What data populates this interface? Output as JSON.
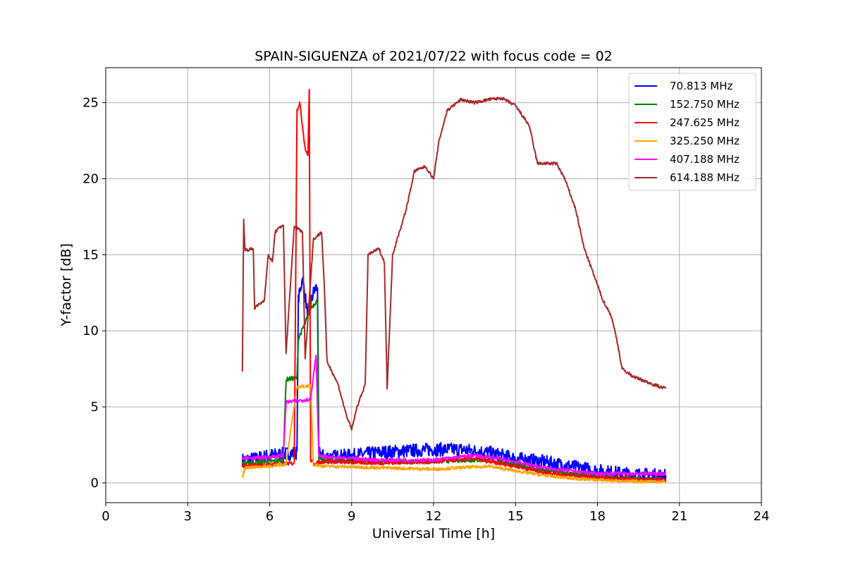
{
  "chart_data": {
    "type": "line",
    "title": "SPAIN-SIGUENZA of 2021/07/22 with focus code = 02",
    "xlabel": "Universal Time [h]",
    "ylabel": "Y-factor [dB]",
    "xlim": [
      0,
      24
    ],
    "ylim": [
      -1.3,
      27.3
    ],
    "xticks": [
      0,
      3,
      6,
      9,
      12,
      15,
      18,
      21,
      24
    ],
    "yticks": [
      0,
      5,
      10,
      15,
      20,
      25
    ],
    "grid": true,
    "legend_position": "top-right",
    "series": [
      {
        "name": " 70.813 MHz",
        "color": "#0000ff",
        "noise": 0.45,
        "points": [
          [
            5.0,
            1.5
          ],
          [
            5.5,
            1.6
          ],
          [
            6.0,
            1.8
          ],
          [
            6.5,
            1.9
          ],
          [
            7.0,
            2.0
          ],
          [
            7.05,
            12.0
          ],
          [
            7.2,
            13.5
          ],
          [
            7.4,
            11.0
          ],
          [
            7.6,
            12.5
          ],
          [
            7.75,
            13.0
          ],
          [
            7.8,
            2.0
          ],
          [
            8.0,
            1.7
          ],
          [
            9.0,
            1.8
          ],
          [
            10.0,
            2.0
          ],
          [
            11.0,
            2.1
          ],
          [
            12.0,
            2.2
          ],
          [
            13.0,
            2.2
          ],
          [
            14.0,
            2.0
          ],
          [
            15.0,
            1.6
          ],
          [
            16.0,
            1.4
          ],
          [
            17.0,
            1.1
          ],
          [
            18.0,
            0.8
          ],
          [
            19.0,
            0.6
          ],
          [
            20.0,
            0.5
          ],
          [
            20.5,
            0.5
          ]
        ]
      },
      {
        "name": "152.750 MHz",
        "color": "#008000",
        "noise": 0.15,
        "points": [
          [
            5.0,
            1.3
          ],
          [
            6.0,
            1.4
          ],
          [
            6.5,
            1.5
          ],
          [
            6.6,
            6.8
          ],
          [
            7.0,
            6.9
          ],
          [
            7.05,
            9.5
          ],
          [
            7.3,
            10.5
          ],
          [
            7.5,
            11.5
          ],
          [
            7.75,
            12.0
          ],
          [
            7.8,
            1.6
          ],
          [
            8.0,
            1.5
          ],
          [
            10.0,
            1.4
          ],
          [
            12.0,
            1.4
          ],
          [
            13.0,
            1.5
          ],
          [
            14.0,
            1.5
          ],
          [
            15.0,
            1.2
          ],
          [
            16.0,
            0.8
          ],
          [
            17.0,
            0.6
          ],
          [
            18.0,
            0.4
          ],
          [
            19.0,
            0.3
          ],
          [
            20.5,
            0.2
          ]
        ]
      },
      {
        "name": "247.625 MHz",
        "color": "#ff0000",
        "noise": 0.12,
        "points": [
          [
            5.0,
            1.1
          ],
          [
            6.0,
            1.2
          ],
          [
            6.9,
            1.3
          ],
          [
            7.0,
            24.5
          ],
          [
            7.1,
            25.0
          ],
          [
            7.2,
            23.5
          ],
          [
            7.3,
            22.0
          ],
          [
            7.4,
            21.5
          ],
          [
            7.45,
            25.8
          ],
          [
            7.5,
            1.5
          ],
          [
            7.6,
            1.3
          ],
          [
            8.0,
            1.4
          ],
          [
            10.0,
            1.3
          ],
          [
            12.0,
            1.4
          ],
          [
            13.5,
            1.6
          ],
          [
            14.0,
            1.4
          ],
          [
            15.0,
            1.1
          ],
          [
            16.0,
            0.7
          ],
          [
            17.0,
            0.5
          ],
          [
            18.0,
            0.3
          ],
          [
            20.5,
            0.2
          ]
        ]
      },
      {
        "name": "325.250 MHz",
        "color": "#ffa500",
        "noise": 0.1,
        "points": [
          [
            5.0,
            0.3
          ],
          [
            5.1,
            1.0
          ],
          [
            6.0,
            1.1
          ],
          [
            6.5,
            1.2
          ],
          [
            6.6,
            1.3
          ],
          [
            7.0,
            6.3
          ],
          [
            7.5,
            6.4
          ],
          [
            7.6,
            1.2
          ],
          [
            8.0,
            1.1
          ],
          [
            10.0,
            1.0
          ],
          [
            12.0,
            0.9
          ],
          [
            13.0,
            1.0
          ],
          [
            14.0,
            1.1
          ],
          [
            15.0,
            0.8
          ],
          [
            16.0,
            0.5
          ],
          [
            17.0,
            0.3
          ],
          [
            18.0,
            0.2
          ],
          [
            19.0,
            0.1
          ],
          [
            20.5,
            0.1
          ]
        ]
      },
      {
        "name": "407.188 MHz",
        "color": "#ff00ff",
        "noise": 0.12,
        "points": [
          [
            5.0,
            1.6
          ],
          [
            6.0,
            1.7
          ],
          [
            6.5,
            1.8
          ],
          [
            6.6,
            5.3
          ],
          [
            7.0,
            5.4
          ],
          [
            7.5,
            5.5
          ],
          [
            7.7,
            8.5
          ],
          [
            7.8,
            1.8
          ],
          [
            8.0,
            1.7
          ],
          [
            10.0,
            1.5
          ],
          [
            12.0,
            1.5
          ],
          [
            13.5,
            1.8
          ],
          [
            14.0,
            1.7
          ],
          [
            15.0,
            1.4
          ],
          [
            16.0,
            1.0
          ],
          [
            17.0,
            0.8
          ],
          [
            18.0,
            0.6
          ],
          [
            19.0,
            0.6
          ],
          [
            20.5,
            0.6
          ]
        ]
      },
      {
        "name": "614.188 MHz",
        "color": "#a52a2a",
        "noise": 0.1,
        "points": [
          [
            5.0,
            7.3
          ],
          [
            5.05,
            17.3
          ],
          [
            5.1,
            15.3
          ],
          [
            5.4,
            15.4
          ],
          [
            5.45,
            11.5
          ],
          [
            5.8,
            12.0
          ],
          [
            5.95,
            15.0
          ],
          [
            6.1,
            14.5
          ],
          [
            6.2,
            16.5
          ],
          [
            6.5,
            17.0
          ],
          [
            6.6,
            8.5
          ],
          [
            6.9,
            16.9
          ],
          [
            7.2,
            16.5
          ],
          [
            7.3,
            8.2
          ],
          [
            7.6,
            16.0
          ],
          [
            7.9,
            16.5
          ],
          [
            8.0,
            13.0
          ],
          [
            8.1,
            8.0
          ],
          [
            8.5,
            6.5
          ],
          [
            8.8,
            4.5
          ],
          [
            9.0,
            3.5
          ],
          [
            9.2,
            5.0
          ],
          [
            9.5,
            6.5
          ],
          [
            9.6,
            15.0
          ],
          [
            10.0,
            15.4
          ],
          [
            10.2,
            14.5
          ],
          [
            10.3,
            6.2
          ],
          [
            10.5,
            15.0
          ],
          [
            11.0,
            18.0
          ],
          [
            11.3,
            20.5
          ],
          [
            11.7,
            20.8
          ],
          [
            12.0,
            20.0
          ],
          [
            12.2,
            22.5
          ],
          [
            12.5,
            24.5
          ],
          [
            13.0,
            25.2
          ],
          [
            13.5,
            25.0
          ],
          [
            14.0,
            25.2
          ],
          [
            14.5,
            25.3
          ],
          [
            15.0,
            24.8
          ],
          [
            15.5,
            23.5
          ],
          [
            15.8,
            21.0
          ],
          [
            16.5,
            21.0
          ],
          [
            16.8,
            20.0
          ],
          [
            17.2,
            18.0
          ],
          [
            17.5,
            15.5
          ],
          [
            17.8,
            14.0
          ],
          [
            18.0,
            13.0
          ],
          [
            18.2,
            12.0
          ],
          [
            18.5,
            11.0
          ],
          [
            18.7,
            9.5
          ],
          [
            18.9,
            7.5
          ],
          [
            19.3,
            7.0
          ],
          [
            20.0,
            6.5
          ],
          [
            20.5,
            6.2
          ]
        ]
      }
    ]
  }
}
